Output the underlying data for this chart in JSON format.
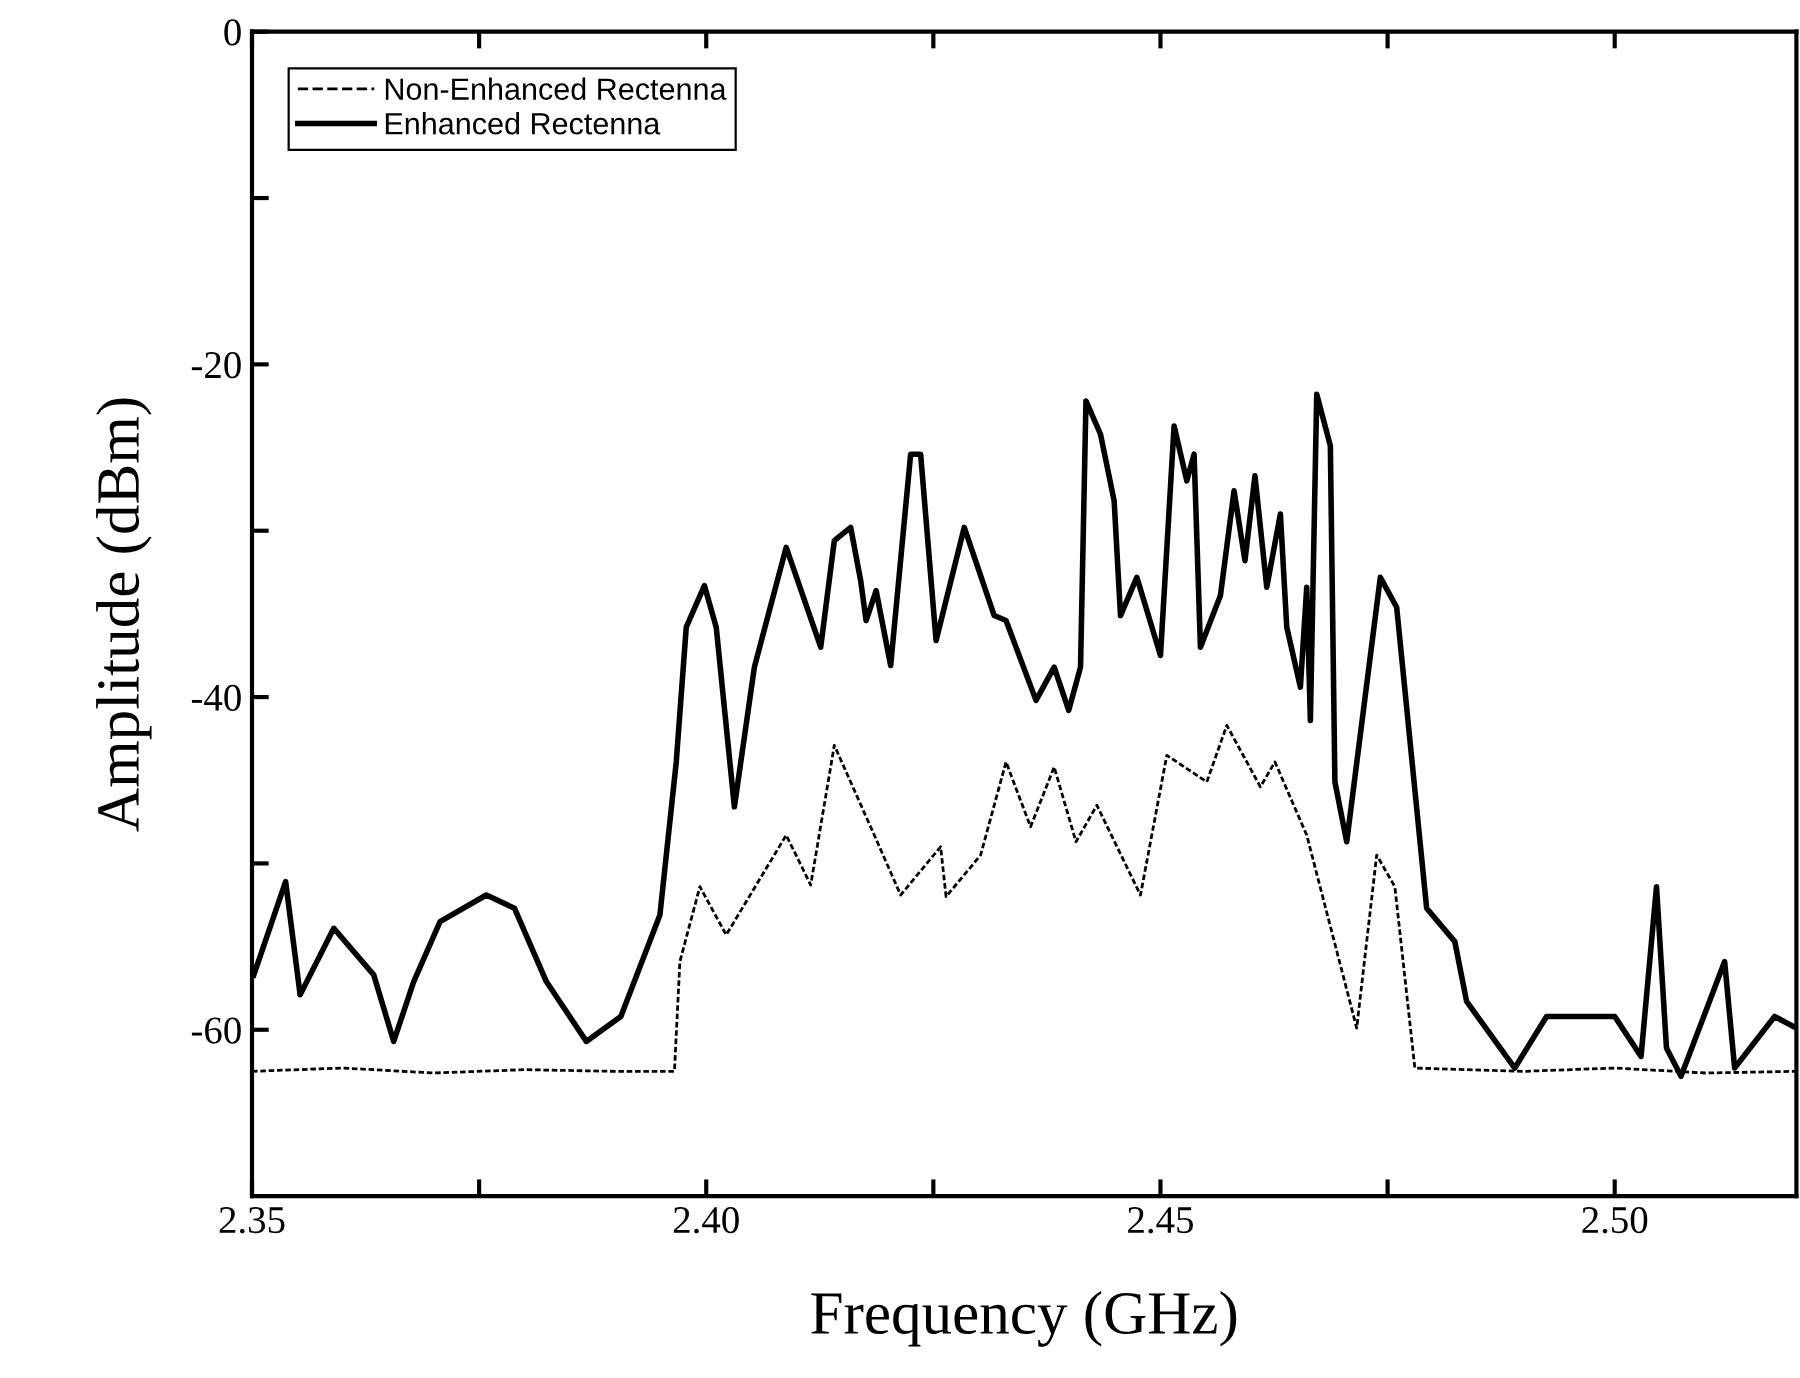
{
  "chart_data": {
    "type": "line",
    "xlabel": "Frequency (GHz)",
    "ylabel": "Amplitude (dBm)",
    "xlim": [
      2.35,
      2.52
    ],
    "ylim": [
      -70,
      0
    ],
    "xticks": [
      {
        "value": 2.35,
        "label": "2.35"
      },
      {
        "value": 2.375,
        "label": null
      },
      {
        "value": 2.4,
        "label": "2.40"
      },
      {
        "value": 2.425,
        "label": null
      },
      {
        "value": 2.45,
        "label": "2.45"
      },
      {
        "value": 2.475,
        "label": null
      },
      {
        "value": 2.5,
        "label": "2.50"
      }
    ],
    "yticks": [
      -60,
      {
        "value": -50,
        "label": null
      },
      -40,
      {
        "value": -30,
        "label": null
      },
      -20,
      {
        "value": -10,
        "label": null
      },
      0
    ],
    "legend": "top left",
    "grid": false,
    "series": [
      {
        "name": "Non-Enhanced Rectenna",
        "color": "#000000",
        "line_style": "dotted",
        "x": [
          2.35,
          2.36,
          2.37,
          2.38,
          2.39,
          2.3965,
          2.3971,
          2.3993,
          2.4022,
          2.4088,
          2.4115,
          2.4141,
          2.4185,
          2.4214,
          2.4258,
          2.4264,
          2.4302,
          2.433,
          2.4357,
          2.4383,
          2.4407,
          2.443,
          2.4478,
          2.4507,
          2.4551,
          2.4573,
          2.461,
          2.4626,
          2.4661,
          2.4716,
          2.4738,
          2.4758,
          2.478,
          2.49,
          2.5,
          2.51,
          2.52
        ],
        "values": [
          -62.5,
          -62.3,
          -62.6,
          -62.4,
          -62.5,
          -62.5,
          -55.9,
          -51.4,
          -54.3,
          -48.3,
          -51.3,
          -42.9,
          -48.3,
          -51.9,
          -49.0,
          -52.0,
          -49.5,
          -43.9,
          -47.8,
          -44.2,
          -48.7,
          -46.5,
          -51.9,
          -43.5,
          -45.1,
          -41.7,
          -45.4,
          -43.9,
          -48.3,
          -59.9,
          -49.5,
          -51.4,
          -62.3,
          -62.5,
          -62.3,
          -62.6,
          -62.5
        ]
      },
      {
        "name": "Enhanced Rectenna",
        "color": "#000000",
        "line_style": "solid",
        "x": [
          2.3502,
          2.3537,
          2.3553,
          2.359,
          2.3634,
          2.3656,
          2.3678,
          2.3707,
          2.3758,
          2.3789,
          2.3824,
          2.3868,
          2.3906,
          2.3949,
          2.3967,
          2.3978,
          2.3998,
          2.4011,
          2.4031,
          2.4053,
          2.4088,
          2.4126,
          2.4141,
          2.4159,
          2.417,
          2.4176,
          2.4187,
          2.4203,
          2.4225,
          2.4236,
          2.4253,
          2.4284,
          2.4317,
          2.433,
          2.4363,
          2.4383,
          2.4399,
          2.4412,
          2.4418,
          2.4434,
          2.4449,
          2.4456,
          2.4474,
          2.45,
          2.4515,
          2.4529,
          2.4537,
          2.4544,
          2.4566,
          2.4581,
          2.4593,
          2.4604,
          2.4617,
          2.4632,
          2.4639,
          2.4654,
          2.4661,
          2.4665,
          2.4672,
          2.4687,
          2.4692,
          2.4705,
          2.4742,
          2.476,
          2.4793,
          2.4824,
          2.4837,
          2.489,
          2.4925,
          2.5,
          2.5029,
          2.5046,
          2.5057,
          2.5073,
          2.5121,
          2.5132,
          2.5176,
          2.52
        ],
        "values": [
          -56.7,
          -51.1,
          -57.9,
          -53.9,
          -56.7,
          -60.7,
          -57.1,
          -53.5,
          -51.9,
          -52.7,
          -57.1,
          -60.7,
          -59.2,
          -53.1,
          -43.9,
          -35.8,
          -33.3,
          -35.8,
          -46.6,
          -38.2,
          -31.0,
          -37.0,
          -30.6,
          -29.8,
          -33.0,
          -35.4,
          -33.6,
          -38.1,
          -25.4,
          -25.4,
          -36.6,
          -29.8,
          -35.1,
          -35.4,
          -40.2,
          -38.2,
          -40.8,
          -38.2,
          -22.2,
          -24.2,
          -28.2,
          -35.1,
          -32.8,
          -37.5,
          -23.7,
          -27.0,
          -25.4,
          -37.0,
          -33.9,
          -27.6,
          -31.8,
          -26.7,
          -33.4,
          -29.0,
          -35.8,
          -39.4,
          -33.4,
          -41.4,
          -21.8,
          -24.9,
          -45.1,
          -48.7,
          -32.8,
          -34.6,
          -52.7,
          -54.7,
          -58.3,
          -62.3,
          -59.2,
          -59.2,
          -61.6,
          -51.4,
          -61.1,
          -62.8,
          -55.9,
          -62.3,
          -59.2,
          -59.9
        ]
      }
    ]
  }
}
